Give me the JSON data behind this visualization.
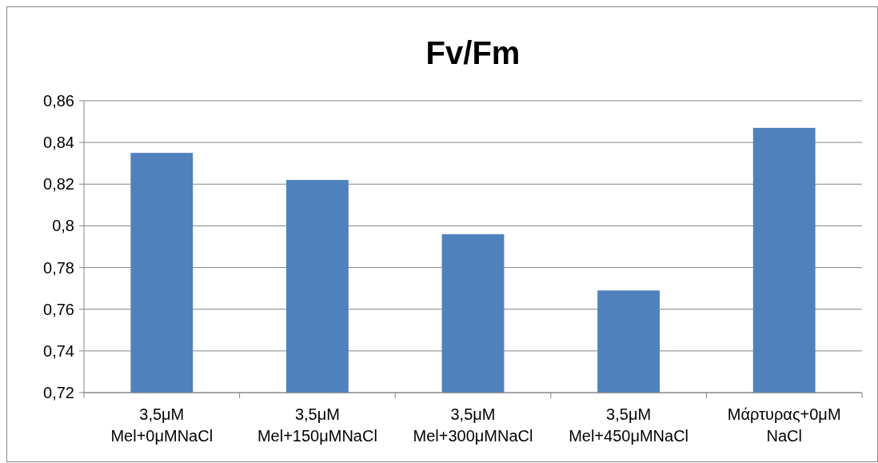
{
  "chart_data": {
    "type": "bar",
    "title": "Fv/Fm",
    "categories": [
      "3,5μM Mel+0μMNaCl",
      "3,5μM Mel+150μMNaCl",
      "3,5μM Mel+300μMNaCl",
      "3,5μM Mel+450μMNaCl",
      "Μάρτυρας+0μM NaCl"
    ],
    "values": [
      0.835,
      0.822,
      0.796,
      0.769,
      0.847
    ],
    "color": "#4f81bd",
    "ylim": [
      0.72,
      0.86
    ],
    "yticks": [
      {
        "value": 0.72,
        "label": "0,72"
      },
      {
        "value": 0.74,
        "label": "0,74"
      },
      {
        "value": 0.76,
        "label": "0,76"
      },
      {
        "value": 0.78,
        "label": "0,78"
      },
      {
        "value": 0.8,
        "label": "0,8"
      },
      {
        "value": 0.82,
        "label": "0,82"
      },
      {
        "value": 0.84,
        "label": "0,84"
      },
      {
        "value": 0.86,
        "label": "0,86"
      }
    ],
    "grid": "y"
  }
}
